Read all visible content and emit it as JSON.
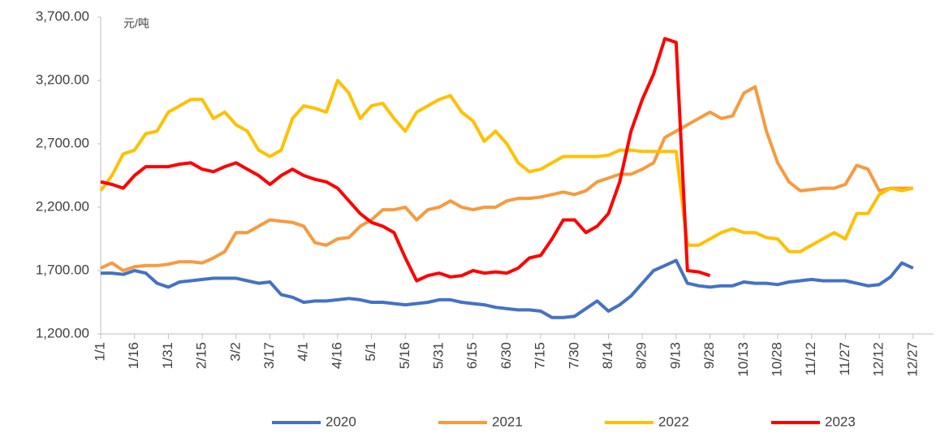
{
  "chart_data": {
    "type": "line",
    "y_label": "元/吨",
    "categories": [
      "1/1",
      null,
      null,
      "1/16",
      null,
      null,
      "1/31",
      null,
      null,
      "2/15",
      null,
      null,
      "3/2",
      null,
      null,
      "3/17",
      null,
      null,
      "4/1",
      null,
      null,
      "4/16",
      null,
      null,
      "5/1",
      null,
      null,
      "5/16",
      null,
      null,
      "5/31",
      null,
      null,
      "6/15",
      null,
      null,
      "6/30",
      null,
      null,
      "7/15",
      null,
      null,
      "7/30",
      null,
      null,
      "8/14",
      null,
      null,
      "8/29",
      null,
      null,
      "9/13",
      null,
      null,
      "9/28",
      null,
      null,
      "10/13",
      null,
      null,
      "10/28",
      null,
      null,
      "11/12",
      null,
      null,
      "11/27",
      null,
      null,
      "12/12",
      null,
      null,
      "12/27"
    ],
    "series": [
      {
        "name": "2020",
        "color": "#4472c4",
        "values": [
          1680,
          1680,
          1670,
          1700,
          1680,
          1600,
          1570,
          1610,
          1620,
          1630,
          1640,
          1640,
          1640,
          1620,
          1600,
          1610,
          1510,
          1490,
          1450,
          1460,
          1460,
          1470,
          1480,
          1470,
          1450,
          1450,
          1440,
          1430,
          1440,
          1450,
          1470,
          1470,
          1450,
          1440,
          1430,
          1410,
          1400,
          1390,
          1390,
          1380,
          1330,
          1330,
          1340,
          1400,
          1460,
          1380,
          1430,
          1500,
          1600,
          1700,
          1740,
          1780,
          1600,
          1580,
          1570,
          1580,
          1580,
          1610,
          1600,
          1600,
          1590,
          1610,
          1620,
          1630,
          1620,
          1620,
          1620,
          1600,
          1580,
          1590,
          1650,
          1760,
          1720
        ]
      },
      {
        "name": "2021",
        "color": "#f79a3e",
        "values": [
          1720,
          1760,
          1700,
          1730,
          1740,
          1740,
          1750,
          1770,
          1770,
          1760,
          1800,
          1850,
          2000,
          2000,
          2050,
          2100,
          2090,
          2080,
          2050,
          1920,
          1900,
          1950,
          1960,
          2050,
          2100,
          2180,
          2180,
          2200,
          2100,
          2180,
          2200,
          2250,
          2200,
          2180,
          2200,
          2200,
          2250,
          2270,
          2270,
          2280,
          2300,
          2320,
          2300,
          2330,
          2400,
          2430,
          2460,
          2460,
          2500,
          2550,
          2750,
          2800,
          2850,
          2900,
          2950,
          2900,
          2920,
          3100,
          3150,
          2800,
          2550,
          2400,
          2330,
          2340,
          2350,
          2350,
          2380,
          2530,
          2500,
          2330,
          2350,
          2350,
          2350
        ]
      },
      {
        "name": "2022",
        "color": "#ffc000",
        "values": [
          2330,
          2450,
          2620,
          2650,
          2780,
          2800,
          2950,
          3000,
          3050,
          3050,
          2900,
          2950,
          2850,
          2800,
          2650,
          2600,
          2650,
          2900,
          3000,
          2980,
          2950,
          3200,
          3100,
          2900,
          3000,
          3020,
          2900,
          2800,
          2950,
          3000,
          3050,
          3080,
          2950,
          2880,
          2720,
          2800,
          2700,
          2550,
          2480,
          2500,
          2550,
          2600,
          2600,
          2600,
          2600,
          2610,
          2650,
          2650,
          2640,
          2640,
          2640,
          2640,
          1900,
          1900,
          1950,
          2000,
          2030,
          2000,
          2000,
          1960,
          1950,
          1850,
          1850,
          1900,
          1950,
          2000,
          1950,
          2150,
          2150,
          2300,
          2350,
          2330,
          2350
        ]
      },
      {
        "name": "2023",
        "color": "#ff0000",
        "values": [
          2400,
          2380,
          2350,
          2450,
          2520,
          2520,
          2520,
          2540,
          2550,
          2500,
          2480,
          2520,
          2550,
          2500,
          2450,
          2380,
          2450,
          2500,
          2450,
          2420,
          2400,
          2350,
          2250,
          2150,
          2080,
          2050,
          2000,
          1800,
          1620,
          1660,
          1680,
          1650,
          1660,
          1700,
          1680,
          1690,
          1680,
          1720,
          1800,
          1820,
          1950,
          2100,
          2100,
          2000,
          2050,
          2150,
          2400,
          2800,
          3050,
          3250,
          3530,
          3500,
          1700,
          1690,
          1660,
          null,
          null,
          null,
          null,
          null,
          null,
          null,
          null,
          null,
          null,
          null,
          null,
          null,
          null,
          null,
          null,
          null,
          null
        ]
      }
    ],
    "ylim": [
      1200,
      3700
    ],
    "yticks": [
      {
        "value": 1200,
        "label": "1,200.00"
      },
      {
        "value": 1700,
        "label": "1,700.00"
      },
      {
        "value": 2200,
        "label": "2,200.00"
      },
      {
        "value": 2700,
        "label": "2,700.00"
      },
      {
        "value": 3200,
        "label": "3,200.00"
      },
      {
        "value": 3700,
        "label": "3,700.00"
      }
    ],
    "grid": false,
    "legend": "bottom"
  }
}
